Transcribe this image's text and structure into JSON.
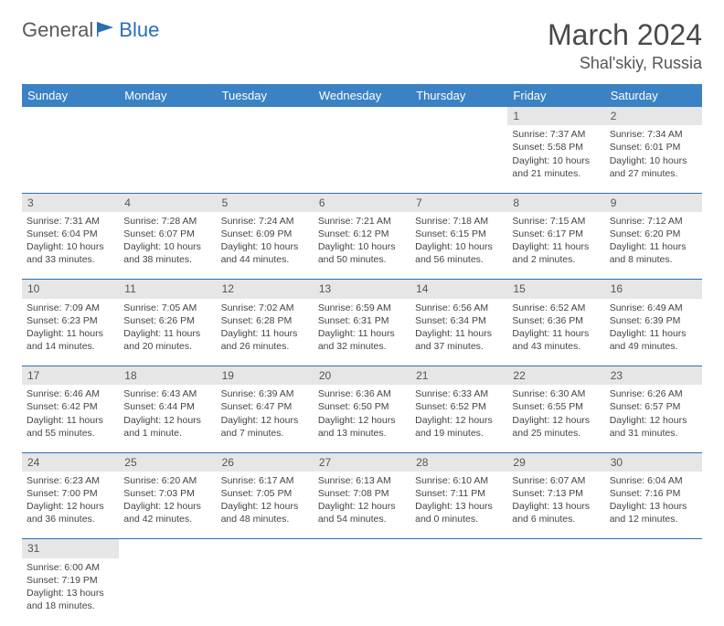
{
  "header": {
    "logo_general": "General",
    "logo_blue": "Blue",
    "month_title": "March 2024",
    "location": "Shal'skiy, Russia"
  },
  "colors": {
    "header_bg": "#3b82c4",
    "header_text": "#ffffff",
    "daynum_bg": "#e6e6e6",
    "row_divider": "#2a6fb5",
    "logo_blue": "#2a6fb5",
    "text": "#444444"
  },
  "weekdays": [
    "Sunday",
    "Monday",
    "Tuesday",
    "Wednesday",
    "Thursday",
    "Friday",
    "Saturday"
  ],
  "weeks": [
    {
      "days": [
        {
          "n": "",
          "sunrise": "",
          "sunset": "",
          "daylight": ""
        },
        {
          "n": "",
          "sunrise": "",
          "sunset": "",
          "daylight": ""
        },
        {
          "n": "",
          "sunrise": "",
          "sunset": "",
          "daylight": ""
        },
        {
          "n": "",
          "sunrise": "",
          "sunset": "",
          "daylight": ""
        },
        {
          "n": "",
          "sunrise": "",
          "sunset": "",
          "daylight": ""
        },
        {
          "n": "1",
          "sunrise": "Sunrise: 7:37 AM",
          "sunset": "Sunset: 5:58 PM",
          "daylight": "Daylight: 10 hours and 21 minutes."
        },
        {
          "n": "2",
          "sunrise": "Sunrise: 7:34 AM",
          "sunset": "Sunset: 6:01 PM",
          "daylight": "Daylight: 10 hours and 27 minutes."
        }
      ]
    },
    {
      "days": [
        {
          "n": "3",
          "sunrise": "Sunrise: 7:31 AM",
          "sunset": "Sunset: 6:04 PM",
          "daylight": "Daylight: 10 hours and 33 minutes."
        },
        {
          "n": "4",
          "sunrise": "Sunrise: 7:28 AM",
          "sunset": "Sunset: 6:07 PM",
          "daylight": "Daylight: 10 hours and 38 minutes."
        },
        {
          "n": "5",
          "sunrise": "Sunrise: 7:24 AM",
          "sunset": "Sunset: 6:09 PM",
          "daylight": "Daylight: 10 hours and 44 minutes."
        },
        {
          "n": "6",
          "sunrise": "Sunrise: 7:21 AM",
          "sunset": "Sunset: 6:12 PM",
          "daylight": "Daylight: 10 hours and 50 minutes."
        },
        {
          "n": "7",
          "sunrise": "Sunrise: 7:18 AM",
          "sunset": "Sunset: 6:15 PM",
          "daylight": "Daylight: 10 hours and 56 minutes."
        },
        {
          "n": "8",
          "sunrise": "Sunrise: 7:15 AM",
          "sunset": "Sunset: 6:17 PM",
          "daylight": "Daylight: 11 hours and 2 minutes."
        },
        {
          "n": "9",
          "sunrise": "Sunrise: 7:12 AM",
          "sunset": "Sunset: 6:20 PM",
          "daylight": "Daylight: 11 hours and 8 minutes."
        }
      ]
    },
    {
      "days": [
        {
          "n": "10",
          "sunrise": "Sunrise: 7:09 AM",
          "sunset": "Sunset: 6:23 PM",
          "daylight": "Daylight: 11 hours and 14 minutes."
        },
        {
          "n": "11",
          "sunrise": "Sunrise: 7:05 AM",
          "sunset": "Sunset: 6:26 PM",
          "daylight": "Daylight: 11 hours and 20 minutes."
        },
        {
          "n": "12",
          "sunrise": "Sunrise: 7:02 AM",
          "sunset": "Sunset: 6:28 PM",
          "daylight": "Daylight: 11 hours and 26 minutes."
        },
        {
          "n": "13",
          "sunrise": "Sunrise: 6:59 AM",
          "sunset": "Sunset: 6:31 PM",
          "daylight": "Daylight: 11 hours and 32 minutes."
        },
        {
          "n": "14",
          "sunrise": "Sunrise: 6:56 AM",
          "sunset": "Sunset: 6:34 PM",
          "daylight": "Daylight: 11 hours and 37 minutes."
        },
        {
          "n": "15",
          "sunrise": "Sunrise: 6:52 AM",
          "sunset": "Sunset: 6:36 PM",
          "daylight": "Daylight: 11 hours and 43 minutes."
        },
        {
          "n": "16",
          "sunrise": "Sunrise: 6:49 AM",
          "sunset": "Sunset: 6:39 PM",
          "daylight": "Daylight: 11 hours and 49 minutes."
        }
      ]
    },
    {
      "days": [
        {
          "n": "17",
          "sunrise": "Sunrise: 6:46 AM",
          "sunset": "Sunset: 6:42 PM",
          "daylight": "Daylight: 11 hours and 55 minutes."
        },
        {
          "n": "18",
          "sunrise": "Sunrise: 6:43 AM",
          "sunset": "Sunset: 6:44 PM",
          "daylight": "Daylight: 12 hours and 1 minute."
        },
        {
          "n": "19",
          "sunrise": "Sunrise: 6:39 AM",
          "sunset": "Sunset: 6:47 PM",
          "daylight": "Daylight: 12 hours and 7 minutes."
        },
        {
          "n": "20",
          "sunrise": "Sunrise: 6:36 AM",
          "sunset": "Sunset: 6:50 PM",
          "daylight": "Daylight: 12 hours and 13 minutes."
        },
        {
          "n": "21",
          "sunrise": "Sunrise: 6:33 AM",
          "sunset": "Sunset: 6:52 PM",
          "daylight": "Daylight: 12 hours and 19 minutes."
        },
        {
          "n": "22",
          "sunrise": "Sunrise: 6:30 AM",
          "sunset": "Sunset: 6:55 PM",
          "daylight": "Daylight: 12 hours and 25 minutes."
        },
        {
          "n": "23",
          "sunrise": "Sunrise: 6:26 AM",
          "sunset": "Sunset: 6:57 PM",
          "daylight": "Daylight: 12 hours and 31 minutes."
        }
      ]
    },
    {
      "days": [
        {
          "n": "24",
          "sunrise": "Sunrise: 6:23 AM",
          "sunset": "Sunset: 7:00 PM",
          "daylight": "Daylight: 12 hours and 36 minutes."
        },
        {
          "n": "25",
          "sunrise": "Sunrise: 6:20 AM",
          "sunset": "Sunset: 7:03 PM",
          "daylight": "Daylight: 12 hours and 42 minutes."
        },
        {
          "n": "26",
          "sunrise": "Sunrise: 6:17 AM",
          "sunset": "Sunset: 7:05 PM",
          "daylight": "Daylight: 12 hours and 48 minutes."
        },
        {
          "n": "27",
          "sunrise": "Sunrise: 6:13 AM",
          "sunset": "Sunset: 7:08 PM",
          "daylight": "Daylight: 12 hours and 54 minutes."
        },
        {
          "n": "28",
          "sunrise": "Sunrise: 6:10 AM",
          "sunset": "Sunset: 7:11 PM",
          "daylight": "Daylight: 13 hours and 0 minutes."
        },
        {
          "n": "29",
          "sunrise": "Sunrise: 6:07 AM",
          "sunset": "Sunset: 7:13 PM",
          "daylight": "Daylight: 13 hours and 6 minutes."
        },
        {
          "n": "30",
          "sunrise": "Sunrise: 6:04 AM",
          "sunset": "Sunset: 7:16 PM",
          "daylight": "Daylight: 13 hours and 12 minutes."
        }
      ]
    },
    {
      "days": [
        {
          "n": "31",
          "sunrise": "Sunrise: 6:00 AM",
          "sunset": "Sunset: 7:19 PM",
          "daylight": "Daylight: 13 hours and 18 minutes."
        },
        {
          "n": "",
          "sunrise": "",
          "sunset": "",
          "daylight": ""
        },
        {
          "n": "",
          "sunrise": "",
          "sunset": "",
          "daylight": ""
        },
        {
          "n": "",
          "sunrise": "",
          "sunset": "",
          "daylight": ""
        },
        {
          "n": "",
          "sunrise": "",
          "sunset": "",
          "daylight": ""
        },
        {
          "n": "",
          "sunrise": "",
          "sunset": "",
          "daylight": ""
        },
        {
          "n": "",
          "sunrise": "",
          "sunset": "",
          "daylight": ""
        }
      ]
    }
  ]
}
